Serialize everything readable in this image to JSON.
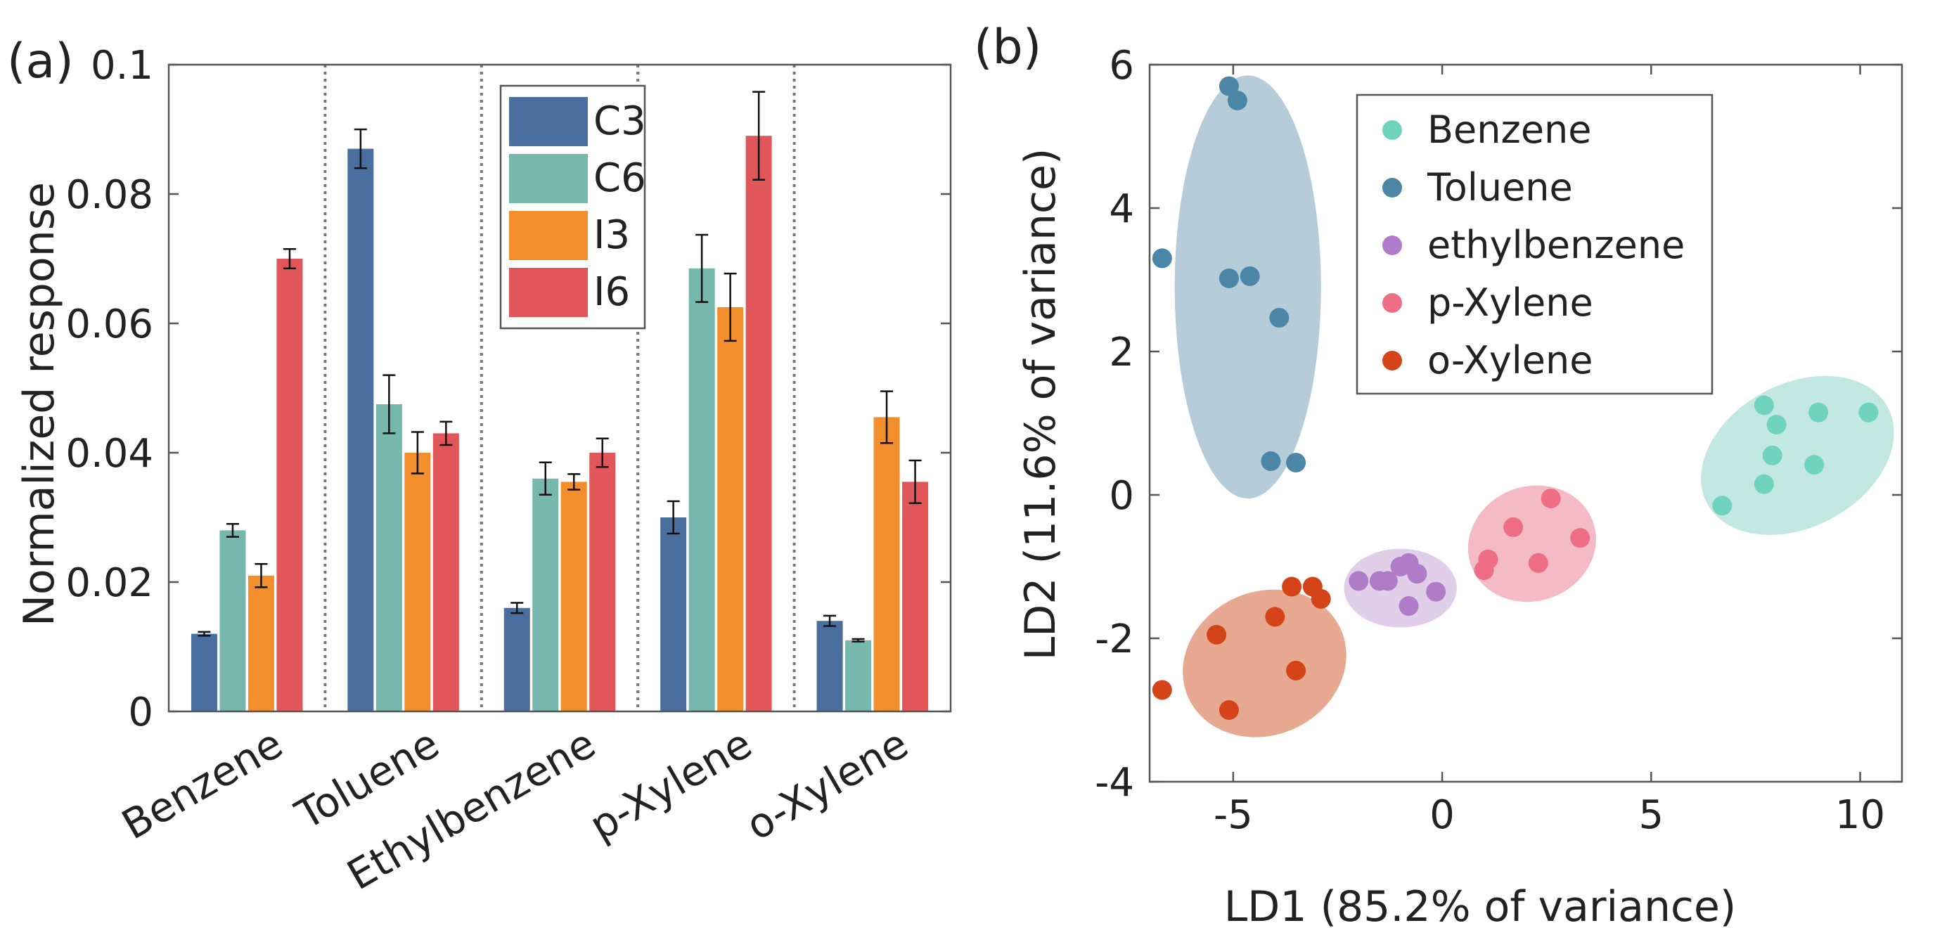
{
  "chart_data": [
    {
      "panel": "(a)",
      "type": "bar",
      "ylabel": "Normalized response",
      "xlabel": "",
      "ylim": [
        0,
        0.1
      ],
      "yticks": [
        {
          "value": 0,
          "label": "0"
        },
        {
          "value": 0.02,
          "label": "0.02"
        },
        {
          "value": 0.04,
          "label": "0.04"
        },
        {
          "value": 0.06,
          "label": "0.06"
        },
        {
          "value": 0.08,
          "label": "0.08"
        },
        {
          "value": 0.1,
          "label": "0.1"
        }
      ],
      "categories": [
        "Benzene",
        "Toluene",
        "Ethylbenzene",
        "p-Xylene",
        "o-Xylene"
      ],
      "legend_position": "top-center",
      "series": [
        {
          "name": "C3",
          "color": "#4a6f9f",
          "values": [
            0.012,
            0.087,
            0.016,
            0.03,
            0.014
          ],
          "errors": [
            0.0003,
            0.003,
            0.0008,
            0.0025,
            0.0008
          ]
        },
        {
          "name": "C6",
          "color": "#76b8ad",
          "values": [
            0.028,
            0.0475,
            0.036,
            0.0685,
            0.011
          ],
          "errors": [
            0.001,
            0.0045,
            0.0025,
            0.0052,
            0.0002
          ]
        },
        {
          "name": "I3",
          "color": "#f28e2b",
          "values": [
            0.021,
            0.04,
            0.0355,
            0.0625,
            0.0455
          ],
          "errors": [
            0.0018,
            0.0032,
            0.0012,
            0.0052,
            0.004
          ]
        },
        {
          "name": "I6",
          "color": "#e15759",
          "values": [
            0.07,
            0.043,
            0.04,
            0.089,
            0.0355
          ],
          "errors": [
            0.0015,
            0.0018,
            0.0022,
            0.0068,
            0.0033
          ]
        }
      ]
    },
    {
      "panel": "(b)",
      "type": "scatter",
      "xlabel": "LD1 (85.2% of variance)",
      "ylabel": "LD2 (11.6% of variance)",
      "xlim": [
        -7,
        11
      ],
      "ylim": [
        -4,
        6
      ],
      "xticks": [
        {
          "value": -5,
          "label": "-5"
        },
        {
          "value": 0,
          "label": "0"
        },
        {
          "value": 5,
          "label": "5"
        },
        {
          "value": 10,
          "label": "10"
        }
      ],
      "yticks": [
        {
          "value": -4,
          "label": "-4"
        },
        {
          "value": -2,
          "label": "-2"
        },
        {
          "value": 0,
          "label": "0"
        },
        {
          "value": 2,
          "label": "2"
        },
        {
          "value": 4,
          "label": "4"
        },
        {
          "value": 6,
          "label": "6"
        }
      ],
      "legend_position": "top-center",
      "series": [
        {
          "name": "Benzene",
          "color": "#6fd3bf",
          "ellipse_color": "#b9e4dc",
          "ellipse": {
            "cx": 8.5,
            "cy": 0.55,
            "rx": 2.45,
            "ry": 1.0,
            "angle_deg": 28
          },
          "points": [
            [
              6.7,
              -0.15
            ],
            [
              7.7,
              0.15
            ],
            [
              7.9,
              0.55
            ],
            [
              8.9,
              0.42
            ],
            [
              8.0,
              0.98
            ],
            [
              7.7,
              1.25
            ],
            [
              9.0,
              1.15
            ],
            [
              10.2,
              1.15
            ]
          ]
        },
        {
          "name": "Toluene",
          "color": "#4b86a6",
          "ellipse_color": "#a9c4d2",
          "ellipse": {
            "cx": -4.65,
            "cy": 2.9,
            "rx": 1.75,
            "ry": 2.95,
            "angle_deg": 0
          },
          "points": [
            [
              -5.1,
              5.7
            ],
            [
              -4.9,
              5.5
            ],
            [
              -6.7,
              3.3
            ],
            [
              -5.1,
              3.02
            ],
            [
              -4.6,
              3.05
            ],
            [
              -3.9,
              2.47
            ],
            [
              -4.1,
              0.47
            ],
            [
              -3.5,
              0.45
            ]
          ]
        },
        {
          "name": "ethylbenzene",
          "color": "#b07bc8",
          "ellipse_color": "#dcc7e6",
          "ellipse": {
            "cx": -1.0,
            "cy": -1.3,
            "rx": 1.35,
            "ry": 0.55,
            "angle_deg": 0
          },
          "points": [
            [
              -2.0,
              -1.2
            ],
            [
              -1.5,
              -1.2
            ],
            [
              -1.3,
              -1.2
            ],
            [
              -1.0,
              -1.0
            ],
            [
              -0.8,
              -0.95
            ],
            [
              -0.6,
              -1.1
            ],
            [
              -0.8,
              -1.55
            ],
            [
              -0.15,
              -1.35
            ]
          ]
        },
        {
          "name": "p-Xylene",
          "color": "#ee6f85",
          "ellipse_color": "#f2aebb",
          "ellipse": {
            "cx": 2.15,
            "cy": -0.68,
            "rx": 1.55,
            "ry": 0.8,
            "angle_deg": 20
          },
          "points": [
            [
              1.0,
              -1.05
            ],
            [
              1.1,
              -0.9
            ],
            [
              1.7,
              -0.45
            ],
            [
              2.6,
              -0.05
            ],
            [
              3.3,
              -0.6
            ],
            [
              2.3,
              -0.95
            ]
          ]
        },
        {
          "name": "o-Xylene",
          "color": "#d54419",
          "ellipse_color": "#e39a7e",
          "ellipse": {
            "cx": -4.25,
            "cy": -2.35,
            "rx": 2.0,
            "ry": 1.0,
            "angle_deg": 24
          },
          "points": [
            [
              -6.7,
              -2.72
            ],
            [
              -5.4,
              -1.95
            ],
            [
              -5.1,
              -3.0
            ],
            [
              -4.0,
              -1.7
            ],
            [
              -3.6,
              -1.28
            ],
            [
              -3.1,
              -1.28
            ],
            [
              -2.9,
              -1.45
            ],
            [
              -3.5,
              -2.45
            ]
          ]
        }
      ]
    }
  ]
}
